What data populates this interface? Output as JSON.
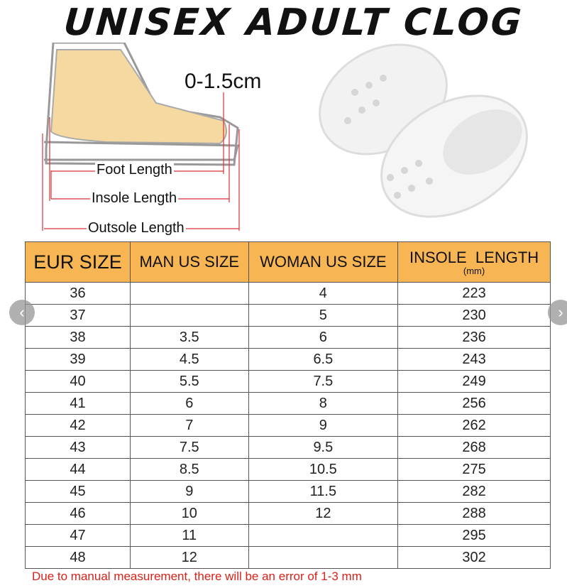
{
  "title": "UNISEX ADULT CLOG",
  "diagram": {
    "tolerance": "0-1.5cm",
    "foot_length": "Foot Length",
    "insole_length": "Insole Length",
    "outsole_length": "Outsole Length"
  },
  "table": {
    "headers": [
      "EUR SIZE",
      "MAN US SIZE",
      "WOMAN US SIZE",
      "INSOLE  LENGTH"
    ],
    "unit": "(mm)",
    "rows": [
      [
        "36",
        "",
        "4",
        "223"
      ],
      [
        "37",
        "",
        "5",
        "230"
      ],
      [
        "38",
        "3.5",
        "6",
        "236"
      ],
      [
        "39",
        "4.5",
        "6.5",
        "243"
      ],
      [
        "40",
        "5.5",
        "7.5",
        "249"
      ],
      [
        "41",
        "6",
        "8",
        "256"
      ],
      [
        "42",
        "7",
        "9",
        "262"
      ],
      [
        "43",
        "7.5",
        "9.5",
        "268"
      ],
      [
        "44",
        "8.5",
        "10.5",
        "275"
      ],
      [
        "45",
        "9",
        "11.5",
        "282"
      ],
      [
        "46",
        "10",
        "12",
        "288"
      ],
      [
        "47",
        "11",
        "",
        "295"
      ],
      [
        "48",
        "12",
        "",
        "302"
      ]
    ]
  },
  "note": "Due to manual measurement, there will be an error of 1-3 mm",
  "carousel": {
    "prev_icon": "chevron-left-icon",
    "next_icon": "chevron-right-icon"
  },
  "colors": {
    "header": "#f7b553",
    "note": "#d8221a",
    "measure": "#d9333a"
  }
}
